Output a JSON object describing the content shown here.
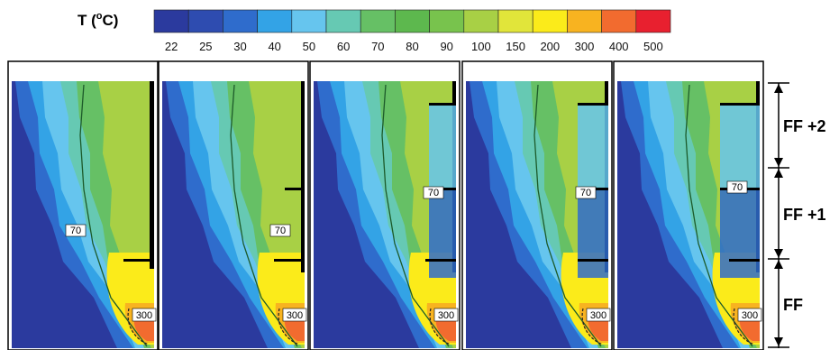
{
  "legend": {
    "title_main": "T (",
    "title_sup": "o",
    "title_end": "C)",
    "levels": [
      "22",
      "25",
      "30",
      "40",
      "50",
      "60",
      "70",
      "80",
      "90",
      "100",
      "150",
      "200",
      "300",
      "400",
      "500"
    ],
    "colors": [
      "#2b3a9e",
      "#2e4cb0",
      "#2f6ccc",
      "#33a3e6",
      "#66c5ee",
      "#66c9b3",
      "#66c065",
      "#5db84e",
      "#78c34d",
      "#a8d045",
      "#e1e53a",
      "#fbeb1a",
      "#f8b320",
      "#f26b2f",
      "#e8202f"
    ]
  },
  "panels": [
    {
      "contour_low": "70",
      "contour_high": "300"
    },
    {
      "contour_low": "70",
      "contour_high": "300"
    },
    {
      "contour_low": "70",
      "contour_high": "300"
    },
    {
      "contour_low": "70",
      "contour_high": "300"
    },
    {
      "contour_low": "70",
      "contour_high": "300"
    }
  ],
  "floors": {
    "top": "FF +2",
    "middle": "FF +1",
    "bottom": "FF"
  }
}
